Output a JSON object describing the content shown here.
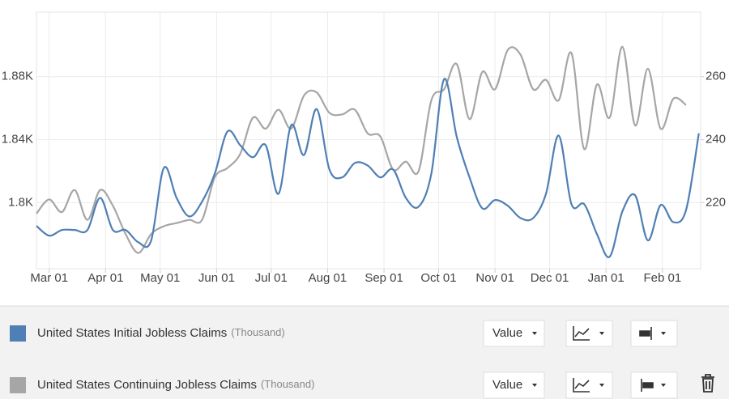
{
  "chart_data": {
    "type": "line",
    "x": [
      0,
      7,
      14,
      21,
      28,
      35,
      42,
      49,
      56,
      63,
      70,
      77,
      84,
      91,
      98,
      105,
      112,
      119,
      126,
      133,
      140,
      147,
      154,
      161,
      168,
      175,
      182,
      189,
      196,
      203,
      210,
      217,
      224,
      231,
      238,
      245,
      252,
      259,
      266,
      273,
      280,
      287,
      294,
      301,
      308,
      315,
      322,
      329,
      336,
      343,
      350,
      357,
      364
    ],
    "xlim": [
      0,
      365
    ],
    "xticks": [
      {
        "value": 7,
        "label": "Mar 01"
      },
      {
        "value": 38,
        "label": "Apr 01"
      },
      {
        "value": 68,
        "label": "May 01"
      },
      {
        "value": 99,
        "label": "Jun 01"
      },
      {
        "value": 129,
        "label": "Jul 01"
      },
      {
        "value": 160,
        "label": "Aug 01"
      },
      {
        "value": 191,
        "label": "Sep 01"
      },
      {
        "value": 221,
        "label": "Oct 01"
      },
      {
        "value": 252,
        "label": "Nov 01"
      },
      {
        "value": 282,
        "label": "Dec 01"
      },
      {
        "value": 313,
        "label": "Jan 01"
      },
      {
        "value": 344,
        "label": "Feb 01"
      }
    ],
    "ylim": [
      1758,
      1921
    ],
    "yticks": [
      {
        "value": 1800,
        "label": "1.8K"
      },
      {
        "value": 1840,
        "label": "1.84K"
      },
      {
        "value": 1880,
        "label": "1.88K"
      }
    ],
    "y2lim": [
      199,
      280.5
    ],
    "y2ticks": [
      220,
      240,
      260
    ],
    "grid": true,
    "series": [
      {
        "name": "United States Initial Jobless Claims",
        "unit": "(Thousand)",
        "color": "#4f7fb4",
        "axis": "y2",
        "values": [
          212.6,
          209.5,
          211.3,
          211.3,
          211.3,
          221.5,
          211.3,
          211.3,
          207.4,
          207.9,
          231,
          221.5,
          215.6,
          220.3,
          229.2,
          242.6,
          238.2,
          234.4,
          238.2,
          222.8,
          244.6,
          235.1,
          249.7,
          230.5,
          228,
          232.6,
          231.8,
          228,
          230.5,
          221.5,
          218.7,
          229.2,
          259.2,
          240.8,
          228,
          218.2,
          220.8,
          219,
          215.1,
          215.1,
          222.8,
          241.3,
          219.5,
          219.5,
          210,
          202.8,
          217.2,
          222.3,
          208,
          219.2,
          213.8,
          217.7,
          242
        ]
      },
      {
        "name": "United States Continuing Jobless Claims",
        "unit": "(Thousand)",
        "color": "#a6a6a6",
        "values": [
          1793,
          1802,
          1794,
          1808,
          1789,
          1808,
          1798,
          1780,
          1768,
          1780,
          1785,
          1787,
          1789,
          1789,
          1816,
          1822,
          1831,
          1854,
          1847,
          1859,
          1847,
          1868,
          1870,
          1857,
          1856,
          1859,
          1844,
          1842,
          1821,
          1826,
          1820,
          1865,
          1872,
          1888,
          1853,
          1883,
          1872,
          1897,
          1894,
          1872,
          1878,
          1865,
          1895,
          1834,
          1875,
          1854,
          1899,
          1849,
          1885,
          1847,
          1866,
          1862,
          null
        ]
      }
    ]
  },
  "controls": [
    {
      "value_button": "Value"
    },
    {
      "value_button": "Value"
    }
  ]
}
